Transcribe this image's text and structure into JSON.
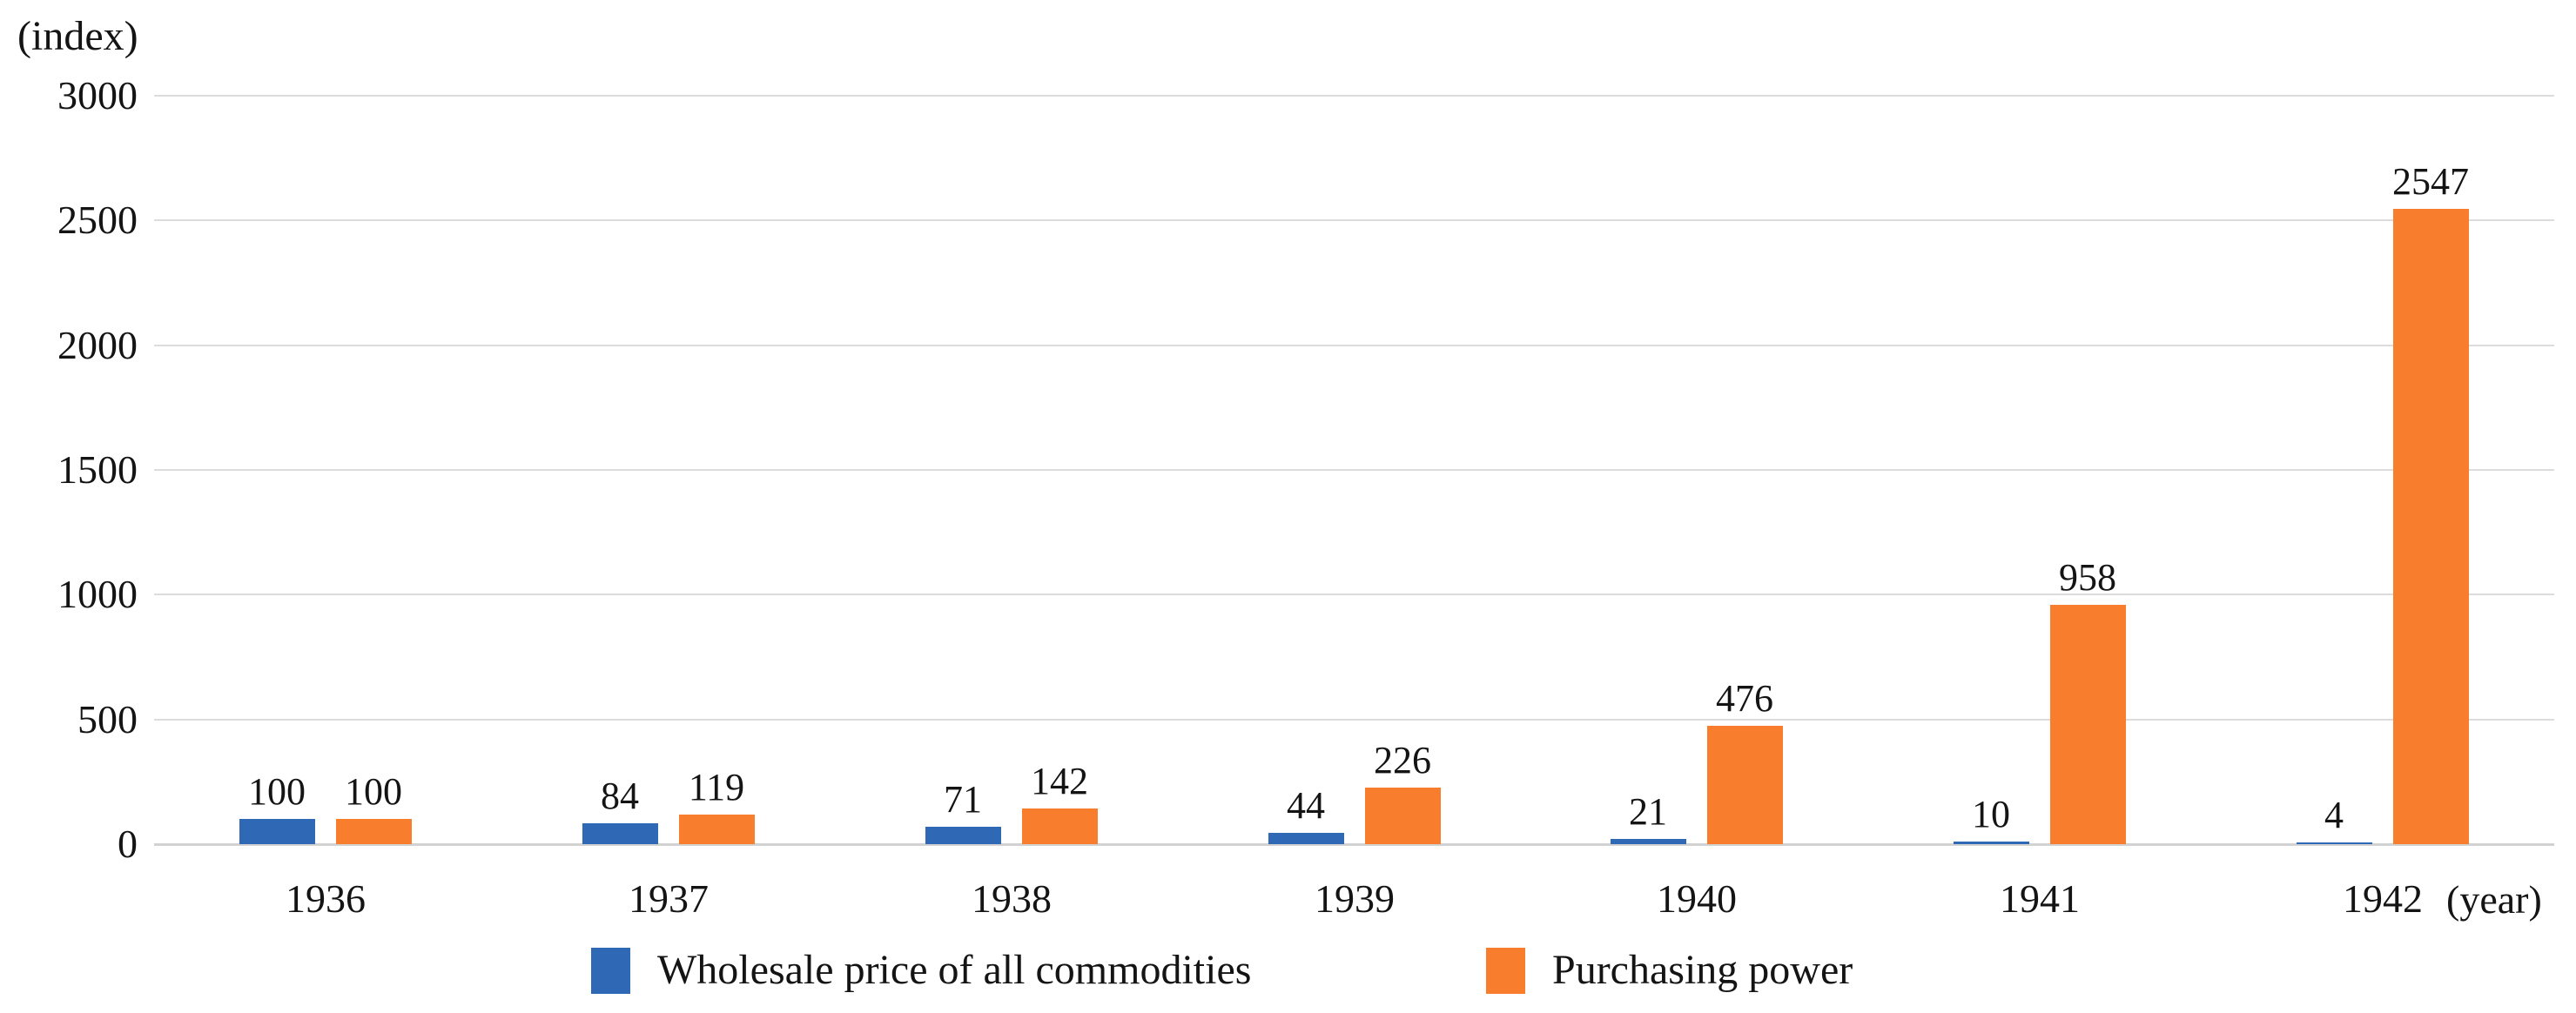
{
  "chart_data": {
    "type": "bar",
    "title": "",
    "ylabel": "(index)",
    "xlabel": "(year)",
    "categories": [
      "1936",
      "1937",
      "1938",
      "1939",
      "1940",
      "1941",
      "1942"
    ],
    "series": [
      {
        "name": "Wholesale price of all commodities",
        "color": "#2F68B4",
        "values": [
          100,
          84,
          71,
          44,
          21,
          10,
          4
        ]
      },
      {
        "name": "Purchasing power",
        "color": "#F87D2C",
        "values": [
          100,
          119,
          142,
          226,
          476,
          958,
          2547
        ]
      }
    ],
    "ylim": [
      0,
      3000
    ],
    "y_ticks": [
      0,
      500,
      1000,
      1500,
      2000,
      2500,
      3000
    ],
    "grid": true,
    "data_labels": true,
    "legend_position": "bottom",
    "gridline_color": "#dcdcdc"
  }
}
